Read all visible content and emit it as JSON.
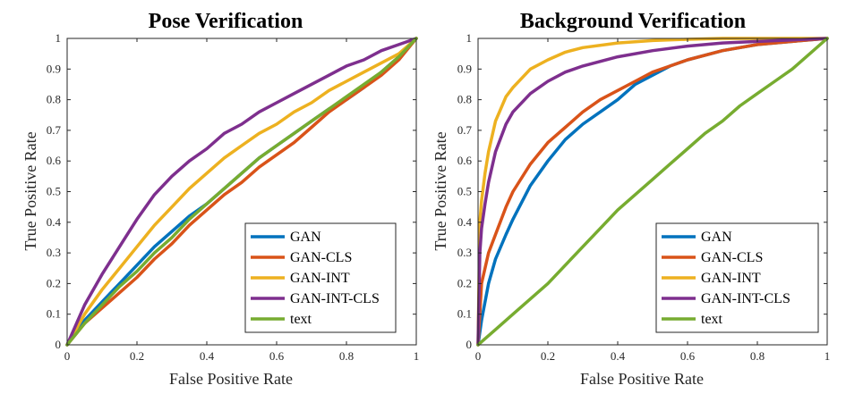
{
  "colors": {
    "GAN": "#0072BD",
    "GAN-CLS": "#D95319",
    "GAN-INT": "#EDB120",
    "GAN-INT-CLS": "#7E2F8E",
    "text": "#77AC30"
  },
  "chart_data": [
    {
      "type": "line",
      "title": "Pose Verification",
      "xlabel": "False Positive Rate",
      "ylabel": "True Positive Rate",
      "xlim": [
        0,
        1
      ],
      "ylim": [
        0,
        1
      ],
      "xticks": [
        "0",
        "0.2",
        "0.4",
        "0.6",
        "0.8",
        "1"
      ],
      "yticks": [
        "0",
        "0.1",
        "0.2",
        "0.3",
        "0.4",
        "0.5",
        "0.6",
        "0.7",
        "0.8",
        "0.9",
        "1"
      ],
      "grid": false,
      "legend_position": "bottom-right",
      "series": [
        {
          "name": "GAN",
          "x": [
            0,
            0.05,
            0.1,
            0.15,
            0.2,
            0.25,
            0.3,
            0.35,
            0.4,
            0.45,
            0.5,
            0.55,
            0.6,
            0.65,
            0.7,
            0.75,
            0.8,
            0.85,
            0.9,
            0.95,
            1
          ],
          "y": [
            0,
            0.08,
            0.14,
            0.2,
            0.26,
            0.32,
            0.37,
            0.42,
            0.46,
            0.51,
            0.56,
            0.61,
            0.65,
            0.69,
            0.73,
            0.77,
            0.8,
            0.84,
            0.89,
            0.94,
            1
          ]
        },
        {
          "name": "GAN-CLS",
          "x": [
            0,
            0.05,
            0.1,
            0.15,
            0.2,
            0.25,
            0.3,
            0.35,
            0.4,
            0.45,
            0.5,
            0.55,
            0.6,
            0.65,
            0.7,
            0.75,
            0.8,
            0.85,
            0.9,
            0.95,
            1
          ],
          "y": [
            0,
            0.07,
            0.12,
            0.17,
            0.22,
            0.28,
            0.33,
            0.39,
            0.44,
            0.49,
            0.53,
            0.58,
            0.62,
            0.66,
            0.71,
            0.76,
            0.8,
            0.84,
            0.88,
            0.93,
            1
          ]
        },
        {
          "name": "GAN-INT",
          "x": [
            0,
            0.05,
            0.1,
            0.15,
            0.2,
            0.25,
            0.3,
            0.35,
            0.4,
            0.45,
            0.5,
            0.55,
            0.6,
            0.65,
            0.7,
            0.75,
            0.8,
            0.85,
            0.9,
            0.95,
            1
          ],
          "y": [
            0,
            0.1,
            0.18,
            0.25,
            0.32,
            0.39,
            0.45,
            0.51,
            0.56,
            0.61,
            0.65,
            0.69,
            0.72,
            0.76,
            0.79,
            0.83,
            0.86,
            0.89,
            0.92,
            0.95,
            1
          ]
        },
        {
          "name": "GAN-INT-CLS",
          "x": [
            0,
            0.05,
            0.1,
            0.15,
            0.2,
            0.25,
            0.3,
            0.35,
            0.4,
            0.45,
            0.5,
            0.55,
            0.6,
            0.65,
            0.7,
            0.75,
            0.8,
            0.85,
            0.9,
            0.95,
            1
          ],
          "y": [
            0,
            0.13,
            0.23,
            0.32,
            0.41,
            0.49,
            0.55,
            0.6,
            0.64,
            0.69,
            0.72,
            0.76,
            0.79,
            0.82,
            0.85,
            0.88,
            0.91,
            0.93,
            0.96,
            0.98,
            1
          ]
        },
        {
          "name": "text",
          "x": [
            0,
            0.05,
            0.1,
            0.15,
            0.2,
            0.25,
            0.3,
            0.35,
            0.4,
            0.45,
            0.5,
            0.55,
            0.6,
            0.65,
            0.7,
            0.75,
            0.8,
            0.85,
            0.9,
            0.95,
            1
          ],
          "y": [
            0,
            0.07,
            0.13,
            0.19,
            0.24,
            0.3,
            0.35,
            0.41,
            0.46,
            0.51,
            0.56,
            0.61,
            0.65,
            0.69,
            0.73,
            0.77,
            0.81,
            0.85,
            0.89,
            0.94,
            1
          ]
        }
      ]
    },
    {
      "type": "line",
      "title": "Background Verification",
      "xlabel": "False Positive Rate",
      "ylabel": "True Positive Rate",
      "xlim": [
        0,
        1
      ],
      "ylim": [
        0,
        1
      ],
      "xticks": [
        "0",
        "0.2",
        "0.4",
        "0.6",
        "0.8",
        "1"
      ],
      "yticks": [
        "0",
        "0.1",
        "0.2",
        "0.3",
        "0.4",
        "0.5",
        "0.6",
        "0.7",
        "0.8",
        "0.9",
        "1"
      ],
      "grid": false,
      "legend_position": "bottom-right",
      "series": [
        {
          "name": "GAN",
          "x": [
            0,
            0.01,
            0.03,
            0.05,
            0.08,
            0.1,
            0.15,
            0.2,
            0.25,
            0.3,
            0.35,
            0.4,
            0.45,
            0.5,
            0.55,
            0.6,
            0.7,
            0.8,
            0.9,
            1
          ],
          "y": [
            0,
            0.08,
            0.2,
            0.28,
            0.36,
            0.41,
            0.52,
            0.6,
            0.67,
            0.72,
            0.76,
            0.8,
            0.85,
            0.88,
            0.91,
            0.93,
            0.96,
            0.98,
            0.99,
            1
          ]
        },
        {
          "name": "GAN-CLS",
          "x": [
            0,
            0.01,
            0.03,
            0.05,
            0.08,
            0.1,
            0.15,
            0.2,
            0.25,
            0.3,
            0.35,
            0.4,
            0.45,
            0.5,
            0.55,
            0.6,
            0.7,
            0.8,
            0.9,
            1
          ],
          "y": [
            0,
            0.2,
            0.3,
            0.36,
            0.45,
            0.5,
            0.59,
            0.66,
            0.71,
            0.76,
            0.8,
            0.83,
            0.86,
            0.89,
            0.91,
            0.93,
            0.96,
            0.98,
            0.99,
            1
          ]
        },
        {
          "name": "GAN-INT",
          "x": [
            0,
            0.005,
            0.01,
            0.02,
            0.03,
            0.05,
            0.08,
            0.1,
            0.15,
            0.2,
            0.25,
            0.3,
            0.4,
            0.5,
            0.6,
            0.7,
            0.8,
            0.9,
            1
          ],
          "y": [
            0,
            0.4,
            0.47,
            0.56,
            0.63,
            0.73,
            0.81,
            0.84,
            0.9,
            0.93,
            0.955,
            0.97,
            0.985,
            0.993,
            0.997,
            1,
            1,
            1,
            1
          ]
        },
        {
          "name": "GAN-INT-CLS",
          "x": [
            0,
            0.005,
            0.01,
            0.02,
            0.03,
            0.05,
            0.08,
            0.1,
            0.15,
            0.2,
            0.25,
            0.3,
            0.4,
            0.5,
            0.6,
            0.7,
            0.8,
            0.9,
            1
          ],
          "y": [
            0,
            0.3,
            0.38,
            0.46,
            0.53,
            0.63,
            0.72,
            0.76,
            0.82,
            0.86,
            0.89,
            0.91,
            0.94,
            0.96,
            0.975,
            0.985,
            0.99,
            0.995,
            1
          ]
        },
        {
          "name": "text",
          "x": [
            0,
            0.05,
            0.1,
            0.15,
            0.2,
            0.25,
            0.3,
            0.35,
            0.4,
            0.45,
            0.5,
            0.55,
            0.6,
            0.65,
            0.7,
            0.75,
            0.8,
            0.85,
            0.9,
            0.95,
            1
          ],
          "y": [
            0,
            0.05,
            0.1,
            0.15,
            0.2,
            0.26,
            0.32,
            0.38,
            0.44,
            0.49,
            0.54,
            0.59,
            0.64,
            0.69,
            0.73,
            0.78,
            0.82,
            0.86,
            0.9,
            0.95,
            1
          ]
        }
      ]
    }
  ]
}
